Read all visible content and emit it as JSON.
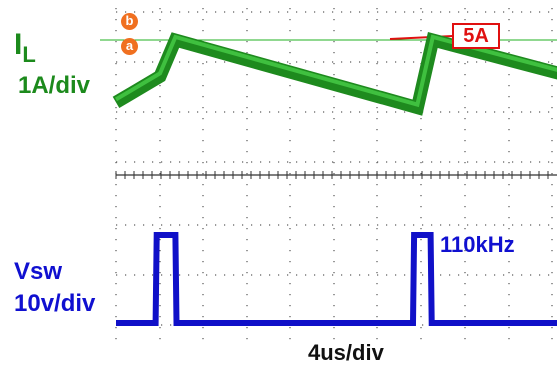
{
  "chart_data": {
    "type": "line",
    "title": "",
    "time_scale": "4us/div",
    "frequency": "110kHz",
    "series": [
      {
        "name": "I",
        "name_subscript": "L",
        "scale": "1A/div",
        "color": "#1c9a1c",
        "waveform": "triangular ripple",
        "x_us": [
          0.0,
          2.0,
          2.7,
          13.7,
          14.4,
          22.0
        ],
        "y_A": [
          4.2,
          4.7,
          5.4,
          4.1,
          5.4,
          4.55
        ]
      },
      {
        "name": "Vsw",
        "scale": "10v/div",
        "color": "#1010d0",
        "waveform": "switching pulses",
        "x_us": [
          0.0,
          1.8,
          1.85,
          2.7,
          2.75,
          13.5,
          13.55,
          14.3,
          14.35,
          22.0
        ],
        "y_V": [
          0,
          0,
          44,
          44,
          0,
          0,
          44,
          44,
          0,
          0
        ]
      }
    ],
    "annotations": [
      {
        "text": "5A",
        "color": "#e01010"
      },
      {
        "text": "b",
        "color": "#f07020"
      },
      {
        "text": "a",
        "color": "#f07020"
      }
    ],
    "xlim_us": [
      0,
      22
    ],
    "grid": true
  }
}
